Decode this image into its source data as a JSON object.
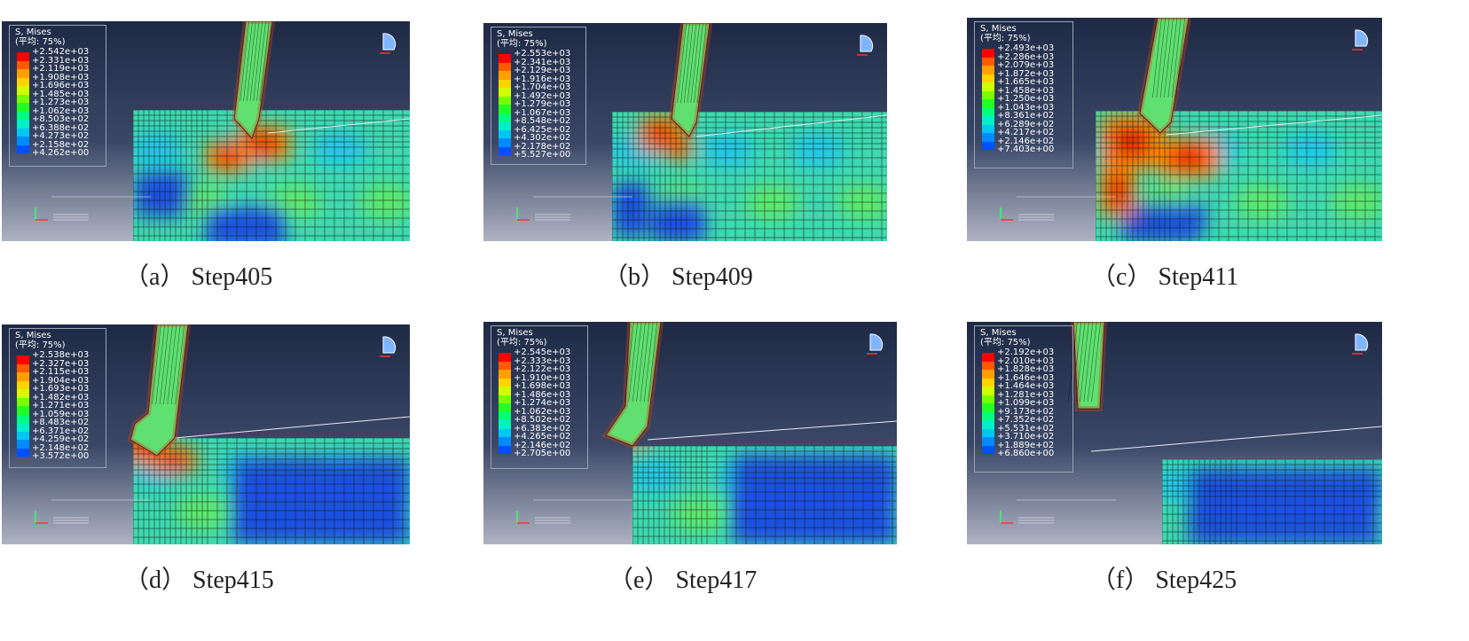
{
  "legend_header_line1": "S, Mises",
  "legend_header_line2": "(平均: 75%)",
  "colormap": [
    "#ff0000",
    "#ff5a00",
    "#ffa000",
    "#ffd200",
    "#cfff00",
    "#78ff00",
    "#22ff22",
    "#00ff7a",
    "#00f0c8",
    "#00c8f0",
    "#008cff",
    "#0050ff",
    "#0000ff"
  ],
  "panels": [
    {
      "label": "（a）",
      "step": "Step405",
      "legend": [
        "+2.542e+03",
        "+2.331e+03",
        "+2.119e+03",
        "+1.908e+03",
        "+1.696e+03",
        "+1.485e+03",
        "+1.273e+03",
        "+1.062e+03",
        "+8.503e+02",
        "+6.388e+02",
        "+4.273e+02",
        "+2.158e+02",
        "+4.262e+00"
      ]
    },
    {
      "label": "（b）",
      "step": "Step409",
      "legend": [
        "+2.553e+03",
        "+2.341e+03",
        "+2.129e+03",
        "+1.916e+03",
        "+1.704e+03",
        "+1.492e+03",
        "+1.279e+03",
        "+1.067e+03",
        "+8.548e+02",
        "+6.425e+02",
        "+4.302e+02",
        "+2.178e+02",
        "+5.527e+00"
      ]
    },
    {
      "label": "（c）",
      "step": "Step411",
      "legend": [
        "+2.493e+03",
        "+2.286e+03",
        "+2.079e+03",
        "+1.872e+03",
        "+1.665e+03",
        "+1.458e+03",
        "+1.250e+03",
        "+1.043e+03",
        "+8.361e+02",
        "+6.289e+02",
        "+4.217e+02",
        "+2.146e+02",
        "+7.403e+00"
      ]
    },
    {
      "label": "（d）",
      "step": "Step415",
      "legend": [
        "+2.538e+03",
        "+2.327e+03",
        "+2.115e+03",
        "+1.904e+03",
        "+1.693e+03",
        "+1.482e+03",
        "+1.271e+03",
        "+1.059e+03",
        "+8.483e+02",
        "+6.371e+02",
        "+4.259e+02",
        "+2.148e+02",
        "+3.572e+00"
      ]
    },
    {
      "label": "（e）",
      "step": "Step417",
      "legend": [
        "+2.545e+03",
        "+2.333e+03",
        "+2.122e+03",
        "+1.910e+03",
        "+1.698e+03",
        "+1.486e+03",
        "+1.274e+03",
        "+1.062e+03",
        "+8.502e+02",
        "+6.383e+02",
        "+4.265e+02",
        "+2.146e+02",
        "+2.705e+00"
      ]
    },
    {
      "label": "（f）",
      "step": "Step425",
      "legend": [
        "+2.192e+03",
        "+2.010e+03",
        "+1.828e+03",
        "+1.646e+03",
        "+1.464e+03",
        "+1.281e+03",
        "+1.099e+03",
        "+9.173e+02",
        "+7.352e+02",
        "+5.531e+02",
        "+3.710e+02",
        "+1.889e+02",
        "+6.860e+00"
      ]
    }
  ]
}
